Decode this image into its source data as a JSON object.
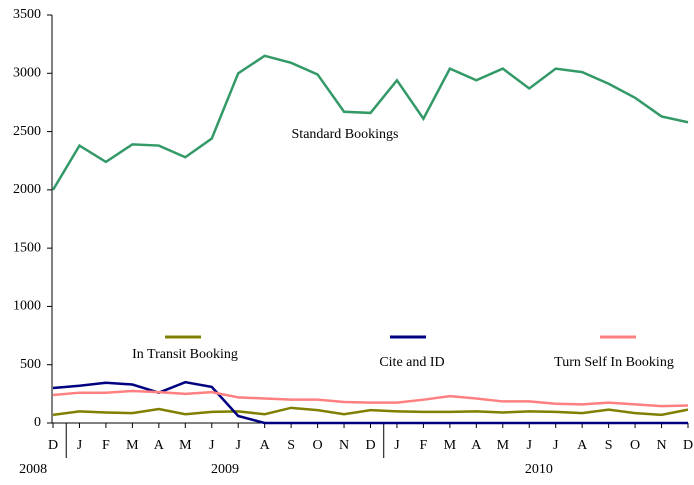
{
  "chart_data": {
    "type": "line",
    "categories": [
      "D",
      "J",
      "F",
      "M",
      "A",
      "M",
      "J",
      "J",
      "A",
      "S",
      "O",
      "N",
      "D",
      "J",
      "F",
      "M",
      "A",
      "M",
      "J",
      "J",
      "A",
      "S",
      "O",
      "N",
      "D"
    ],
    "groups": [
      {
        "label": "2008",
        "count": 1
      },
      {
        "label": "2009",
        "count": 12
      },
      {
        "label": "2010",
        "count": 12
      }
    ],
    "series": [
      {
        "name": "Standard Bookings",
        "color": "#339966",
        "values": [
          2000,
          2380,
          2240,
          2390,
          2380,
          2280,
          2440,
          3000,
          3150,
          3090,
          2990,
          2670,
          2660,
          2940,
          2610,
          3040,
          2940,
          3040,
          2870,
          3040,
          3010,
          2910,
          2790,
          2630,
          2580
        ]
      },
      {
        "name": "In Transit Booking",
        "color": "#808000",
        "values": [
          70,
          100,
          90,
          85,
          120,
          75,
          95,
          100,
          75,
          130,
          110,
          75,
          110,
          100,
          95,
          95,
          100,
          90,
          100,
          95,
          85,
          115,
          85,
          70,
          115
        ]
      },
      {
        "name": "Cite and ID",
        "color": "#000080",
        "values": [
          300,
          320,
          345,
          330,
          260,
          350,
          310,
          60,
          0,
          0,
          0,
          0,
          0,
          0,
          0,
          0,
          0,
          0,
          0,
          0,
          0,
          0,
          0,
          0,
          0
        ]
      },
      {
        "name": "Turn Self In Booking",
        "color": "#ff8080",
        "values": [
          240,
          260,
          260,
          275,
          265,
          250,
          265,
          220,
          210,
          200,
          200,
          180,
          175,
          175,
          200,
          230,
          210,
          185,
          185,
          165,
          160,
          175,
          160,
          145,
          150
        ]
      }
    ],
    "ylim": [
      0,
      3500
    ],
    "yticks": [
      0,
      500,
      1000,
      1500,
      2000,
      2500,
      3000,
      3500
    ],
    "grid": false
  }
}
